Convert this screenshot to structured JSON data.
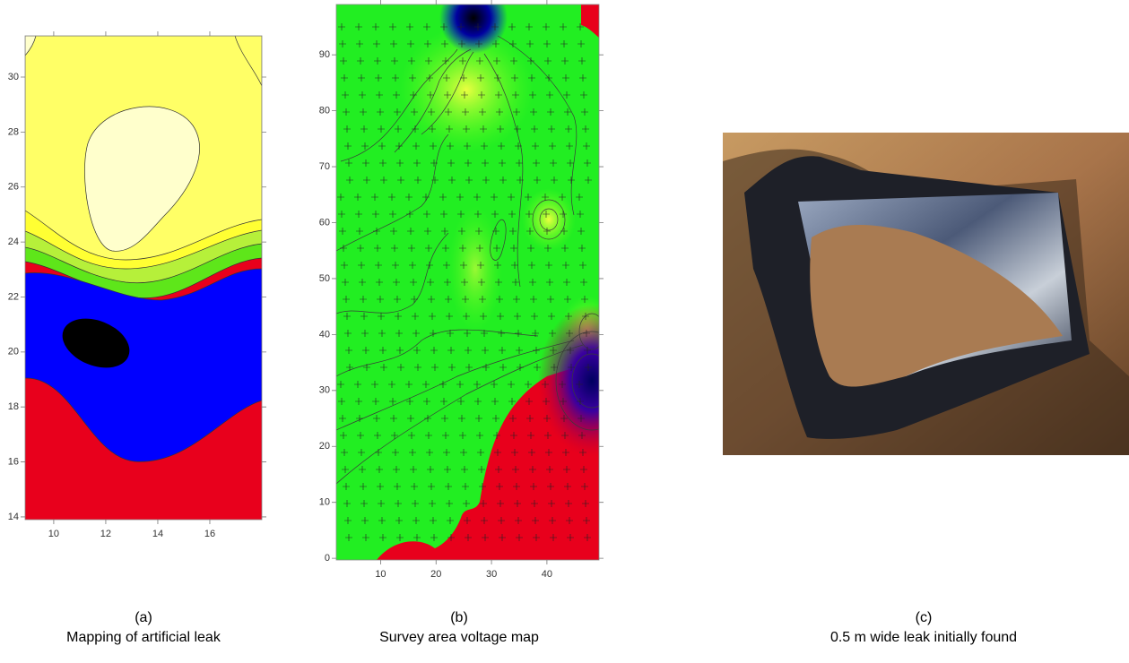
{
  "panels": [
    {
      "label": "(a)",
      "caption": "Mapping of artificial leak",
      "xlim": [
        8.9,
        18
      ],
      "ylim": [
        13.9,
        31.5
      ],
      "xticks": [
        10,
        12,
        14,
        16
      ],
      "yticks": [
        14,
        16,
        18,
        20,
        22,
        24,
        26,
        28,
        30
      ]
    },
    {
      "label": "(b)",
      "caption": "Survey area voltage map",
      "xlim": [
        2,
        49.4
      ],
      "ylim": [
        -0.3,
        99
      ],
      "xticks": [
        10,
        20,
        30,
        40
      ],
      "yticks": [
        0,
        10,
        20,
        30,
        40,
        50,
        60,
        70,
        80,
        90
      ]
    },
    {
      "label": "(c)",
      "caption": "0.5 m wide leak initially found"
    }
  ]
}
